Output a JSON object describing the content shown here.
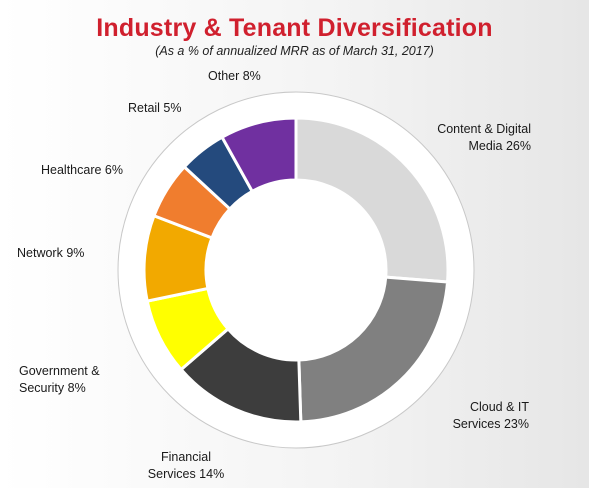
{
  "header": {
    "title": "Industry & Tenant Diversification",
    "subtitle": "(As a % of annualized MRR as of March 31, 2017)"
  },
  "chart_data": {
    "type": "pie",
    "style": "donut",
    "categories": [
      "Content & Digital Media",
      "Cloud & IT Services",
      "Financial Services",
      "Government & Security",
      "Network",
      "Healthcare",
      "Retail",
      "Other"
    ],
    "values": [
      26,
      23,
      14,
      8,
      9,
      6,
      5,
      8
    ],
    "unit": "%",
    "labels": [
      [
        "Content & Digital",
        "Media 26%"
      ],
      [
        "Cloud & IT",
        "Services 23%"
      ],
      [
        "Financial",
        "Services 14%"
      ],
      [
        "Government &",
        "Security 8%"
      ],
      [
        "Network 9%"
      ],
      [
        "Healthcare 6%"
      ],
      [
        "Retail 5%"
      ],
      [
        "Other 8%"
      ]
    ],
    "colors": [
      "#d9d9d9",
      "#808080",
      "#3d3d3d",
      "#ffff00",
      "#f2a900",
      "#f07d2e",
      "#244a7d",
      "#7030a0"
    ],
    "legend": "none"
  }
}
